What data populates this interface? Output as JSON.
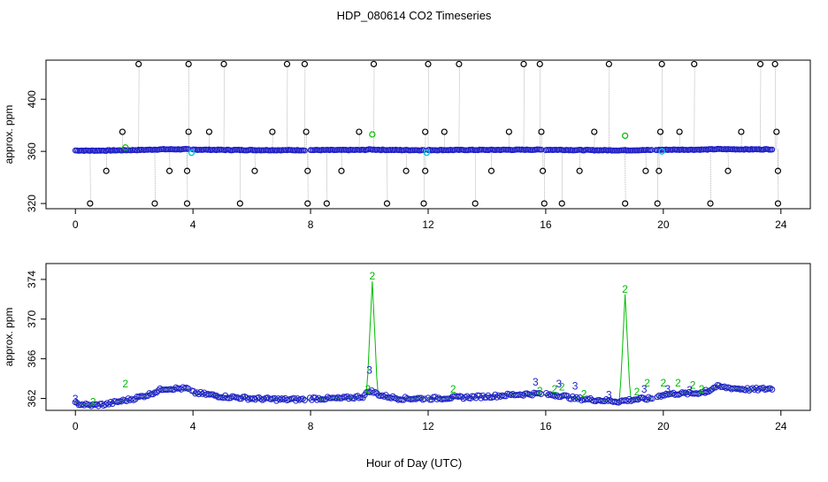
{
  "title": "HDP_080614  CO2 Timeseries",
  "xlabel": "Hour of Day (UTC)",
  "colors": {
    "raw": "#000000",
    "level1": "#00bb00",
    "level2": "#00c8e0",
    "level3": "#1f1fc8",
    "frame": "#000000"
  },
  "chart_data": [
    {
      "type": "scatter",
      "panel": "top",
      "ylabel": "approx. ppm",
      "xlim": [
        -1,
        25
      ],
      "ylim": [
        316,
        430
      ],
      "x_ticks": [
        0,
        4,
        8,
        12,
        16,
        20,
        24
      ],
      "x_tick_labels": [
        "0",
        "4",
        "8",
        "12",
        "16",
        "20",
        "24"
      ],
      "y_ticks": [
        320,
        360,
        400
      ],
      "y_tick_labels": [
        "320",
        "360",
        "400"
      ],
      "outliers_high": [
        2.15,
        3.85,
        5.05,
        7.2,
        7.8,
        10.15,
        12.0,
        13.05,
        15.25,
        15.8,
        18.15,
        19.95,
        21.05,
        23.3,
        23.8
      ],
      "outliers_low": [
        0.5,
        2.7,
        3.8,
        5.6,
        7.9,
        8.55,
        10.6,
        11.85,
        13.6,
        15.95,
        16.55,
        18.7,
        19.8,
        21.6,
        23.9
      ],
      "outliers_mid_high": [
        1.6,
        3.85,
        4.55,
        6.7,
        7.85,
        9.65,
        11.9,
        12.55,
        14.75,
        15.85,
        17.65,
        19.9,
        20.55,
        22.65,
        23.85
      ],
      "outliers_mid_low": [
        1.05,
        3.2,
        3.8,
        6.1,
        7.9,
        9.05,
        11.25,
        11.9,
        14.15,
        15.9,
        17.15,
        19.4,
        19.85,
        22.2,
        23.9
      ],
      "series_note_points": [
        {
          "x": 10.1,
          "y": 373
        },
        {
          "x": 18.7,
          "y": 372
        },
        {
          "x": 1.7,
          "y": 363
        }
      ],
      "cyan_points": [
        {
          "x": 3.95,
          "y": 359
        },
        {
          "x": 11.95,
          "y": 359
        },
        {
          "x": 19.95,
          "y": 360
        }
      ]
    },
    {
      "type": "line",
      "panel": "bottom",
      "ylabel": "approx. ppm",
      "xlim": [
        -1,
        25
      ],
      "ylim": [
        360.8,
        375.6
      ],
      "x_ticks": [
        0,
        4,
        8,
        12,
        16,
        20,
        24
      ],
      "x_tick_labels": [
        "0",
        "4",
        "8",
        "12",
        "16",
        "20",
        "24"
      ],
      "y_ticks": [
        362,
        366,
        370,
        374
      ],
      "y_tick_labels": [
        "362",
        "366",
        "370",
        "374"
      ],
      "baseline_profile": [
        {
          "x": 0.0,
          "y": 361.5
        },
        {
          "x": 0.5,
          "y": 361.3
        },
        {
          "x": 1.0,
          "y": 361.4
        },
        {
          "x": 1.5,
          "y": 361.7
        },
        {
          "x": 2.0,
          "y": 362.0
        },
        {
          "x": 2.5,
          "y": 362.4
        },
        {
          "x": 3.0,
          "y": 363.0
        },
        {
          "x": 3.5,
          "y": 363.0
        },
        {
          "x": 3.8,
          "y": 363.0
        },
        {
          "x": 4.0,
          "y": 362.6
        },
        {
          "x": 4.5,
          "y": 362.4
        },
        {
          "x": 5.0,
          "y": 362.2
        },
        {
          "x": 6.0,
          "y": 362.0
        },
        {
          "x": 7.0,
          "y": 361.9
        },
        {
          "x": 7.75,
          "y": 361.9
        },
        {
          "x": 8.0,
          "y": 362.0
        },
        {
          "x": 9.0,
          "y": 362.0
        },
        {
          "x": 9.8,
          "y": 362.2
        },
        {
          "x": 10.0,
          "y": 362.8
        },
        {
          "x": 10.4,
          "y": 362.3
        },
        {
          "x": 11.0,
          "y": 362.0
        },
        {
          "x": 11.9,
          "y": 362.0
        },
        {
          "x": 12.0,
          "y": 362.0
        },
        {
          "x": 13.0,
          "y": 362.1
        },
        {
          "x": 14.0,
          "y": 362.2
        },
        {
          "x": 15.0,
          "y": 362.4
        },
        {
          "x": 15.9,
          "y": 362.5
        },
        {
          "x": 16.0,
          "y": 362.4
        },
        {
          "x": 16.5,
          "y": 362.3
        },
        {
          "x": 17.0,
          "y": 362.0
        },
        {
          "x": 17.5,
          "y": 361.9
        },
        {
          "x": 18.0,
          "y": 361.8
        },
        {
          "x": 18.5,
          "y": 361.7
        },
        {
          "x": 19.0,
          "y": 361.9
        },
        {
          "x": 19.6,
          "y": 362.0
        },
        {
          "x": 20.0,
          "y": 362.4
        },
        {
          "x": 20.5,
          "y": 362.5
        },
        {
          "x": 21.0,
          "y": 362.5
        },
        {
          "x": 21.5,
          "y": 362.7
        },
        {
          "x": 21.8,
          "y": 363.2
        },
        {
          "x": 22.5,
          "y": 363.0
        },
        {
          "x": 23.0,
          "y": 362.9
        },
        {
          "x": 23.7,
          "y": 363.0
        }
      ],
      "gaps": [
        [
          3.85,
          3.95
        ],
        [
          7.8,
          7.95
        ],
        [
          11.9,
          12.0
        ],
        [
          15.9,
          16.0
        ],
        [
          19.65,
          19.75
        ]
      ],
      "spikes": [
        {
          "x": 10.1,
          "y": 373.8,
          "label": "2"
        },
        {
          "x": 18.7,
          "y": 372.5,
          "label": "2"
        }
      ],
      "labels_2": [
        {
          "x": 1.7,
          "y": 363.1
        },
        {
          "x": 12.85,
          "y": 362.6
        },
        {
          "x": 16.3,
          "y": 362.6
        },
        {
          "x": 16.55,
          "y": 362.8
        },
        {
          "x": 17.3,
          "y": 362.1
        },
        {
          "x": 19.45,
          "y": 363.2
        },
        {
          "x": 20.0,
          "y": 363.2
        },
        {
          "x": 20.5,
          "y": 363.2
        },
        {
          "x": 21.0,
          "y": 363.0
        },
        {
          "x": 9.95,
          "y": 362.6
        },
        {
          "x": 15.8,
          "y": 362.4
        },
        {
          "x": 19.1,
          "y": 362.3
        },
        {
          "x": 0.6,
          "y": 361.3
        },
        {
          "x": 21.3,
          "y": 362.6
        }
      ],
      "labels_3": [
        {
          "x": 0.0,
          "y": 361.6
        },
        {
          "x": 10.0,
          "y": 364.5
        },
        {
          "x": 15.65,
          "y": 363.3
        },
        {
          "x": 16.45,
          "y": 363.1
        },
        {
          "x": 17.0,
          "y": 362.9
        },
        {
          "x": 18.15,
          "y": 362.0
        },
        {
          "x": 19.35,
          "y": 362.6
        },
        {
          "x": 20.9,
          "y": 362.5
        },
        {
          "x": 21.45,
          "y": 362.4
        },
        {
          "x": 20.15,
          "y": 362.6
        }
      ]
    }
  ]
}
